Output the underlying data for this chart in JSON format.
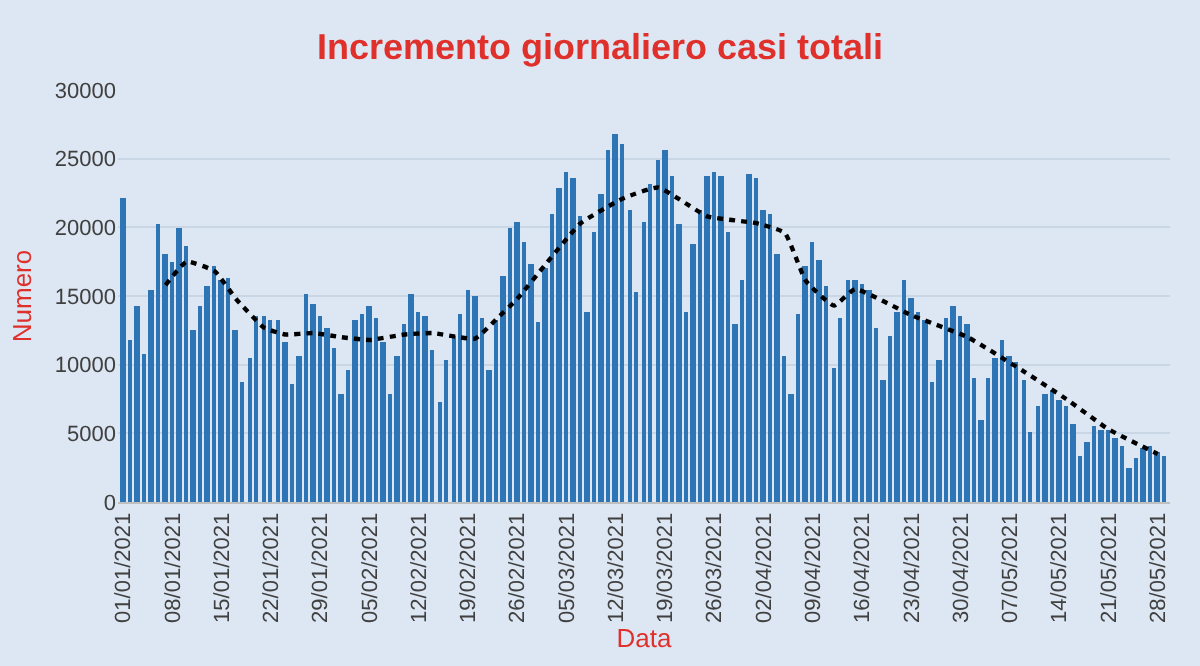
{
  "chart_data": {
    "type": "bar",
    "title": "Incremento giornaliero casi totali",
    "xlabel": "Data",
    "ylabel": "Numero",
    "xlim": [
      "2020-12-31T06:00",
      "2021-05-29T18:00"
    ],
    "xticks": [
      {
        "value": "2021-01-01",
        "label": "01/01/2021"
      },
      {
        "value": "2021-01-08",
        "label": "08/01/2021"
      },
      {
        "value": "2021-01-15",
        "label": "15/01/2021"
      },
      {
        "value": "2021-01-22",
        "label": "22/01/2021"
      },
      {
        "value": "2021-01-29",
        "label": "29/01/2021"
      },
      {
        "value": "2021-02-05",
        "label": "05/02/2021"
      },
      {
        "value": "2021-02-12",
        "label": "12/02/2021"
      },
      {
        "value": "2021-02-19",
        "label": "19/02/2021"
      },
      {
        "value": "2021-02-26",
        "label": "26/02/2021"
      },
      {
        "value": "2021-03-05",
        "label": "05/03/2021"
      },
      {
        "value": "2021-03-12",
        "label": "12/03/2021"
      },
      {
        "value": "2021-03-19",
        "label": "19/03/2021"
      },
      {
        "value": "2021-03-26",
        "label": "26/03/2021"
      },
      {
        "value": "2021-04-02",
        "label": "02/04/2021"
      },
      {
        "value": "2021-04-09",
        "label": "09/04/2021"
      },
      {
        "value": "2021-04-16",
        "label": "16/04/2021"
      },
      {
        "value": "2021-04-23",
        "label": "23/04/2021"
      },
      {
        "value": "2021-04-30",
        "label": "30/04/2021"
      },
      {
        "value": "2021-05-07",
        "label": "07/05/2021"
      },
      {
        "value": "2021-05-14",
        "label": "14/05/2021"
      },
      {
        "value": "2021-05-21",
        "label": "21/05/2021"
      },
      {
        "value": "2021-05-28",
        "label": "28/05/2021"
      }
    ],
    "ylim": [
      0,
      30000
    ],
    "yticks": [
      0,
      5000,
      10000,
      15000,
      20000,
      25000,
      30000
    ],
    "grid": "y",
    "series": [
      {
        "color": "#2e75b6",
        "x": [
          "2021-01-01",
          "2021-01-02",
          "2021-01-03",
          "2021-01-04",
          "2021-01-05",
          "2021-01-06",
          "2021-01-07",
          "2021-01-08",
          "2021-01-09",
          "2021-01-10",
          "2021-01-11",
          "2021-01-12",
          "2021-01-13",
          "2021-01-14",
          "2021-01-15",
          "2021-01-16",
          "2021-01-17",
          "2021-01-18",
          "2021-01-19",
          "2021-01-20",
          "2021-01-21",
          "2021-01-22",
          "2021-01-23",
          "2021-01-24",
          "2021-01-25",
          "2021-01-26",
          "2021-01-27",
          "2021-01-28",
          "2021-01-29",
          "2021-01-30",
          "2021-01-31",
          "2021-02-01",
          "2021-02-02",
          "2021-02-03",
          "2021-02-04",
          "2021-02-05",
          "2021-02-06",
          "2021-02-07",
          "2021-02-08",
          "2021-02-09",
          "2021-02-10",
          "2021-02-11",
          "2021-02-12",
          "2021-02-13",
          "2021-02-14",
          "2021-02-15",
          "2021-02-16",
          "2021-02-17",
          "2021-02-18",
          "2021-02-19",
          "2021-02-20",
          "2021-02-21",
          "2021-02-22",
          "2021-02-23",
          "2021-02-24",
          "2021-02-25",
          "2021-02-26",
          "2021-02-27",
          "2021-02-28",
          "2021-03-01",
          "2021-03-02",
          "2021-03-03",
          "2021-03-04",
          "2021-03-05",
          "2021-03-06",
          "2021-03-07",
          "2021-03-08",
          "2021-03-09",
          "2021-03-10",
          "2021-03-11",
          "2021-03-12",
          "2021-03-13",
          "2021-03-14",
          "2021-03-15",
          "2021-03-16",
          "2021-03-17",
          "2021-03-18",
          "2021-03-19",
          "2021-03-20",
          "2021-03-21",
          "2021-03-22",
          "2021-03-23",
          "2021-03-24",
          "2021-03-25",
          "2021-03-26",
          "2021-03-27",
          "2021-03-28",
          "2021-03-29",
          "2021-03-30",
          "2021-03-31",
          "2021-04-01",
          "2021-04-02",
          "2021-04-03",
          "2021-04-04",
          "2021-04-05",
          "2021-04-06",
          "2021-04-07",
          "2021-04-08",
          "2021-04-09",
          "2021-04-10",
          "2021-04-11",
          "2021-04-12",
          "2021-04-13",
          "2021-04-14",
          "2021-04-15",
          "2021-04-16",
          "2021-04-17",
          "2021-04-18",
          "2021-04-19",
          "2021-04-20",
          "2021-04-21",
          "2021-04-22",
          "2021-04-23",
          "2021-04-24",
          "2021-04-25",
          "2021-04-26",
          "2021-04-27",
          "2021-04-28",
          "2021-04-29",
          "2021-04-30",
          "2021-05-01",
          "2021-05-02",
          "2021-05-03",
          "2021-05-04",
          "2021-05-05",
          "2021-05-06",
          "2021-05-07",
          "2021-05-08",
          "2021-05-09",
          "2021-05-10",
          "2021-05-11",
          "2021-05-12",
          "2021-05-13",
          "2021-05-14",
          "2021-05-15",
          "2021-05-16",
          "2021-05-17",
          "2021-05-18",
          "2021-05-19",
          "2021-05-20",
          "2021-05-21",
          "2021-05-22",
          "2021-05-23",
          "2021-05-24",
          "2021-05-25",
          "2021-05-26",
          "2021-05-27",
          "2021-05-28",
          "2021-05-29"
        ],
        "values": [
          22200,
          11800,
          14200,
          10800,
          15400,
          20300,
          18000,
          17500,
          19900,
          18600,
          12500,
          14200,
          15800,
          17200,
          16200,
          16300,
          12500,
          8800,
          10500,
          13600,
          13500,
          13300,
          13300,
          11600,
          8600,
          10600,
          15200,
          14400,
          13600,
          12700,
          11200,
          7900,
          9600,
          13200,
          13700,
          14200,
          13400,
          11600,
          7900,
          10600,
          12900,
          15100,
          13900,
          13500,
          11100,
          7300,
          10400,
          12100,
          13700,
          15500,
          15000,
          13400,
          9600,
          13300,
          16400,
          19900,
          20400,
          18900,
          17300,
          13100,
          17100,
          20900,
          22900,
          24000,
          23600,
          20800,
          13900,
          19700,
          22400,
          25700,
          26800,
          26100,
          21300,
          15300,
          20400,
          23100,
          24900,
          25700,
          23800,
          20200,
          13800,
          18800,
          21300,
          23700,
          24000,
          23800,
          19600,
          12900,
          16200,
          23900,
          23600,
          21300,
          21000,
          18000,
          10700,
          7800,
          13700,
          17200,
          18900,
          17600,
          15700,
          9800,
          13400,
          16200,
          16100,
          15900,
          15400,
          12700,
          8900,
          12100,
          13800,
          16200,
          14800,
          13800,
          13200,
          8800,
          10400,
          13400,
          14300,
          13600,
          12900,
          9100,
          5900,
          9100,
          10500,
          11800,
          10600,
          10200,
          8900,
          5100,
          7000,
          7900,
          8100,
          7500,
          7000,
          5700,
          3400,
          4400,
          5500,
          5200,
          5200,
          4700,
          4100,
          2500,
          3200,
          3900,
          4100,
          3700,
          3300
        ]
      },
      {
        "type": "line",
        "color": "#000000",
        "line_style": "dotted",
        "marker": "none",
        "x": [
          "2021-01-07",
          "2021-01-10",
          "2021-01-14",
          "2021-01-17",
          "2021-01-21",
          "2021-01-24",
          "2021-01-28",
          "2021-02-01",
          "2021-02-05",
          "2021-02-10",
          "2021-02-14",
          "2021-02-20",
          "2021-02-23",
          "2021-02-26",
          "2021-03-02",
          "2021-03-07",
          "2021-03-13",
          "2021-03-18",
          "2021-03-25",
          "2021-04-01",
          "2021-04-05",
          "2021-04-08",
          "2021-04-12",
          "2021-04-15",
          "2021-04-23",
          "2021-05-01",
          "2021-05-09",
          "2021-05-15",
          "2021-05-21",
          "2021-05-28"
        ],
        "values": [
          15800,
          17500,
          16800,
          14800,
          12700,
          12200,
          12300,
          12000,
          11800,
          12200,
          12300,
          11900,
          13300,
          14800,
          17300,
          20300,
          22100,
          22900,
          20800,
          20300,
          19600,
          16100,
          14300,
          15500,
          13600,
          12000,
          9500,
          7500,
          5300,
          3500
        ]
      }
    ]
  }
}
